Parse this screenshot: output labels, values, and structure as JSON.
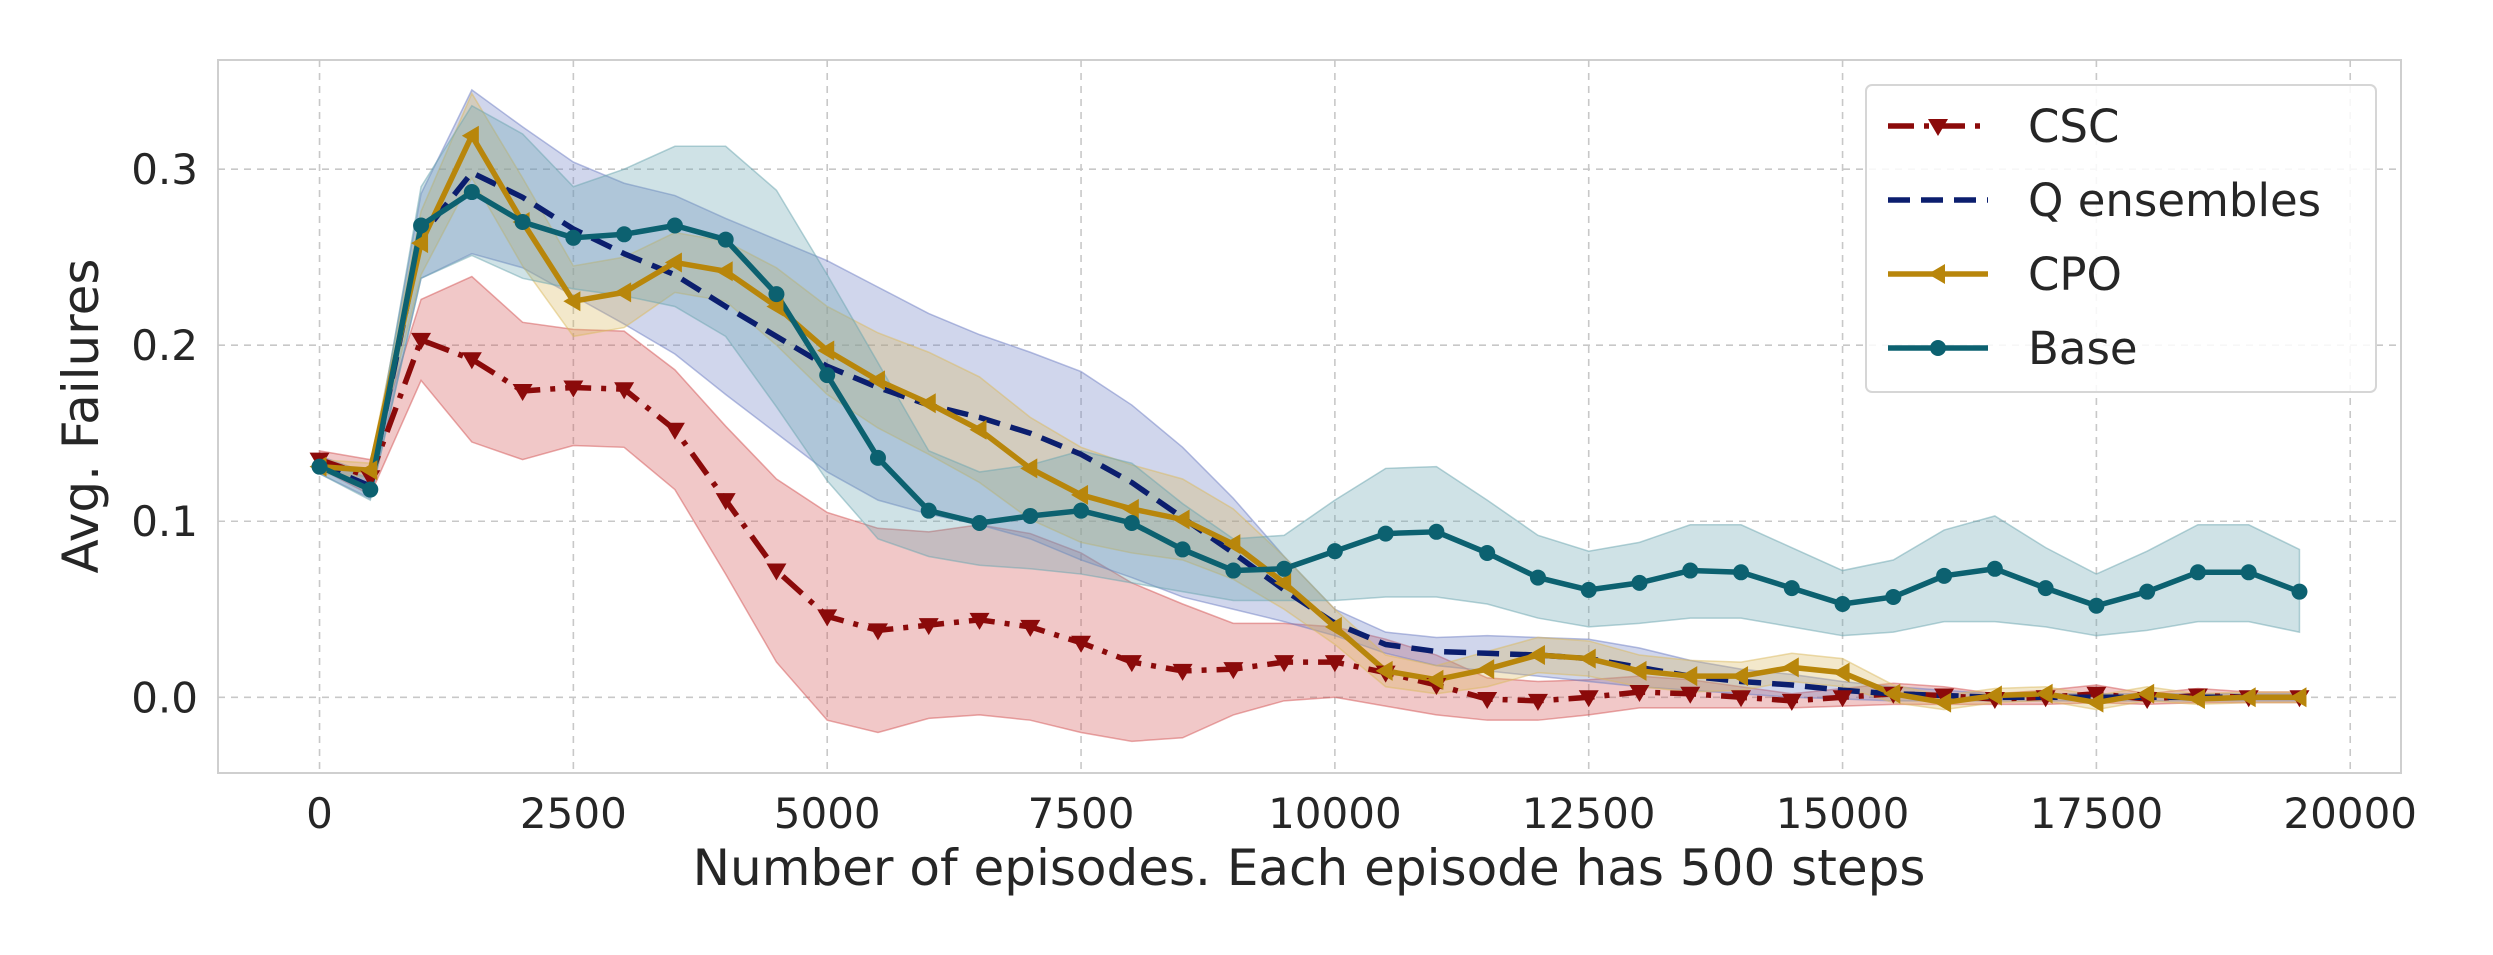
{
  "chart_data": {
    "type": "line",
    "title": "",
    "xlabel": "Number of episodes. Each episode has 500 steps",
    "ylabel": "Avg. Failures",
    "xlim": [
      -1000,
      20500
    ],
    "ylim": [
      -0.043,
      0.362
    ],
    "grid": true,
    "legend_position": "top-right",
    "x_ticks": [
      0,
      2500,
      5000,
      7500,
      10000,
      12500,
      15000,
      17500,
      20000
    ],
    "x_tick_labels": [
      "0",
      "2500",
      "5000",
      "7500",
      "10000",
      "12500",
      "15000",
      "17500",
      "20000"
    ],
    "y_ticks": [
      0.0,
      0.1,
      0.2,
      0.3
    ],
    "y_tick_labels": [
      "0.0",
      "0.1",
      "0.2",
      "0.3"
    ],
    "x": [
      0,
      500,
      1000,
      1500,
      2000,
      2500,
      3000,
      3500,
      4000,
      4500,
      5000,
      5500,
      6000,
      6500,
      7000,
      7500,
      8000,
      8500,
      9000,
      9500,
      10000,
      10500,
      11000,
      11500,
      12000,
      12500,
      13000,
      13500,
      14000,
      14500,
      15000,
      15500,
      16000,
      16500,
      17000,
      17500,
      18000,
      18500,
      19000,
      19500
    ],
    "series": [
      {
        "name": "CSC",
        "color": "#8b0a0a",
        "band_color": "#d35454",
        "dash": "dashdot",
        "marker": "triangle-down",
        "values": [
          0.135,
          0.125,
          0.203,
          0.192,
          0.174,
          0.176,
          0.175,
          0.152,
          0.112,
          0.072,
          0.046,
          0.038,
          0.041,
          0.044,
          0.04,
          0.031,
          0.02,
          0.015,
          0.016,
          0.02,
          0.02,
          0.014,
          0.007,
          -0.001,
          -0.002,
          0.0,
          0.003,
          0.002,
          0.0,
          -0.002,
          0.0,
          0.002,
          0.001,
          -0.001,
          0.0,
          0.002,
          -0.001,
          0.001,
          0.0,
          0.0
        ],
        "lower": [
          0.13,
          0.115,
          0.18,
          0.145,
          0.135,
          0.143,
          0.142,
          0.118,
          0.07,
          0.02,
          -0.013,
          -0.02,
          -0.012,
          -0.01,
          -0.013,
          -0.02,
          -0.025,
          -0.023,
          -0.01,
          -0.002,
          0.0,
          -0.005,
          -0.01,
          -0.013,
          -0.013,
          -0.01,
          -0.006,
          -0.006,
          -0.006,
          -0.006,
          -0.005,
          -0.004,
          -0.004,
          -0.004,
          -0.004,
          -0.003,
          -0.004,
          -0.003,
          -0.003,
          -0.003
        ],
        "upper": [
          0.14,
          0.135,
          0.226,
          0.239,
          0.213,
          0.209,
          0.208,
          0.186,
          0.154,
          0.124,
          0.105,
          0.096,
          0.094,
          0.098,
          0.093,
          0.082,
          0.065,
          0.053,
          0.042,
          0.042,
          0.04,
          0.033,
          0.024,
          0.011,
          0.009,
          0.01,
          0.012,
          0.01,
          0.006,
          0.002,
          0.005,
          0.008,
          0.006,
          0.002,
          0.004,
          0.007,
          0.002,
          0.005,
          0.003,
          0.003
        ]
      },
      {
        "name": "Q ensembles",
        "color": "#0b1e6e",
        "band_color": "#6e7ec4",
        "dash": "dashed",
        "marker": "none",
        "values": [
          0.132,
          0.12,
          0.262,
          0.298,
          0.284,
          0.266,
          0.252,
          0.24,
          0.222,
          0.205,
          0.188,
          0.176,
          0.166,
          0.159,
          0.15,
          0.138,
          0.122,
          0.102,
          0.082,
          0.061,
          0.042,
          0.03,
          0.026,
          0.025,
          0.024,
          0.022,
          0.017,
          0.012,
          0.009,
          0.007,
          0.004,
          0.002,
          0.001,
          0.0,
          0.0,
          0.0,
          0.0,
          0.0,
          0.0,
          0.0
        ],
        "lower": [
          0.127,
          0.113,
          0.238,
          0.252,
          0.244,
          0.228,
          0.212,
          0.195,
          0.172,
          0.15,
          0.128,
          0.112,
          0.104,
          0.098,
          0.09,
          0.078,
          0.068,
          0.057,
          0.05,
          0.043,
          0.035,
          0.025,
          0.018,
          0.015,
          0.012,
          0.009,
          0.006,
          0.004,
          0.002,
          0.0,
          -0.001,
          -0.002,
          -0.002,
          -0.002,
          -0.002,
          -0.002,
          -0.002,
          -0.002,
          -0.002,
          -0.002
        ],
        "upper": [
          0.137,
          0.127,
          0.286,
          0.345,
          0.324,
          0.304,
          0.292,
          0.285,
          0.272,
          0.26,
          0.248,
          0.233,
          0.218,
          0.206,
          0.196,
          0.185,
          0.166,
          0.142,
          0.113,
          0.08,
          0.05,
          0.037,
          0.034,
          0.035,
          0.034,
          0.033,
          0.028,
          0.021,
          0.016,
          0.013,
          0.009,
          0.006,
          0.004,
          0.002,
          0.002,
          0.002,
          0.002,
          0.002,
          0.002,
          0.002
        ]
      },
      {
        "name": "CPO",
        "color": "#b8860b",
        "band_color": "#dbb95e",
        "dash": "solid",
        "marker": "triangle-left",
        "values": [
          0.131,
          0.129,
          0.258,
          0.319,
          0.27,
          0.225,
          0.23,
          0.247,
          0.242,
          0.222,
          0.197,
          0.18,
          0.167,
          0.152,
          0.13,
          0.115,
          0.107,
          0.101,
          0.087,
          0.065,
          0.04,
          0.015,
          0.01,
          0.016,
          0.024,
          0.022,
          0.015,
          0.012,
          0.012,
          0.017,
          0.014,
          0.002,
          -0.003,
          0.001,
          0.002,
          -0.003,
          0.002,
          -0.001,
          0.0,
          0.0
        ],
        "lower": [
          0.127,
          0.125,
          0.24,
          0.295,
          0.245,
          0.205,
          0.21,
          0.23,
          0.225,
          0.2,
          0.172,
          0.153,
          0.138,
          0.122,
          0.101,
          0.088,
          0.082,
          0.078,
          0.067,
          0.05,
          0.03,
          0.006,
          0.002,
          0.006,
          0.014,
          0.012,
          0.006,
          0.003,
          0.004,
          0.009,
          0.006,
          -0.003,
          -0.007,
          -0.003,
          -0.002,
          -0.007,
          -0.002,
          -0.004,
          -0.003,
          -0.003
        ],
        "upper": [
          0.135,
          0.133,
          0.276,
          0.343,
          0.295,
          0.245,
          0.25,
          0.264,
          0.259,
          0.244,
          0.222,
          0.207,
          0.196,
          0.182,
          0.159,
          0.142,
          0.132,
          0.124,
          0.107,
          0.08,
          0.05,
          0.024,
          0.018,
          0.026,
          0.034,
          0.032,
          0.024,
          0.021,
          0.02,
          0.025,
          0.022,
          0.007,
          0.001,
          0.005,
          0.006,
          0.001,
          0.006,
          0.002,
          0.003,
          0.003
        ]
      },
      {
        "name": "Base",
        "color": "#0c6170",
        "band_color": "#6ba6b0",
        "dash": "solid",
        "marker": "circle",
        "values": [
          0.131,
          0.118,
          0.268,
          0.287,
          0.27,
          0.261,
          0.263,
          0.268,
          0.26,
          0.229,
          0.183,
          0.136,
          0.106,
          0.099,
          0.103,
          0.106,
          0.099,
          0.084,
          0.072,
          0.073,
          0.083,
          0.093,
          0.094,
          0.082,
          0.068,
          0.061,
          0.065,
          0.072,
          0.071,
          0.062,
          0.053,
          0.057,
          0.069,
          0.073,
          0.062,
          0.052,
          0.06,
          0.071,
          0.071,
          0.06
        ],
        "lower": [
          0.127,
          0.112,
          0.238,
          0.251,
          0.238,
          0.232,
          0.228,
          0.222,
          0.205,
          0.165,
          0.123,
          0.09,
          0.08,
          0.075,
          0.073,
          0.07,
          0.065,
          0.06,
          0.055,
          0.055,
          0.055,
          0.057,
          0.057,
          0.053,
          0.045,
          0.04,
          0.042,
          0.045,
          0.045,
          0.04,
          0.035,
          0.037,
          0.043,
          0.043,
          0.04,
          0.035,
          0.038,
          0.043,
          0.043,
          0.037
        ],
        "upper": [
          0.135,
          0.124,
          0.29,
          0.336,
          0.32,
          0.29,
          0.3,
          0.313,
          0.313,
          0.288,
          0.24,
          0.19,
          0.14,
          0.128,
          0.132,
          0.14,
          0.133,
          0.11,
          0.09,
          0.092,
          0.112,
          0.13,
          0.131,
          0.112,
          0.092,
          0.083,
          0.088,
          0.098,
          0.098,
          0.085,
          0.072,
          0.078,
          0.095,
          0.103,
          0.085,
          0.07,
          0.083,
          0.098,
          0.098,
          0.084
        ]
      }
    ]
  }
}
